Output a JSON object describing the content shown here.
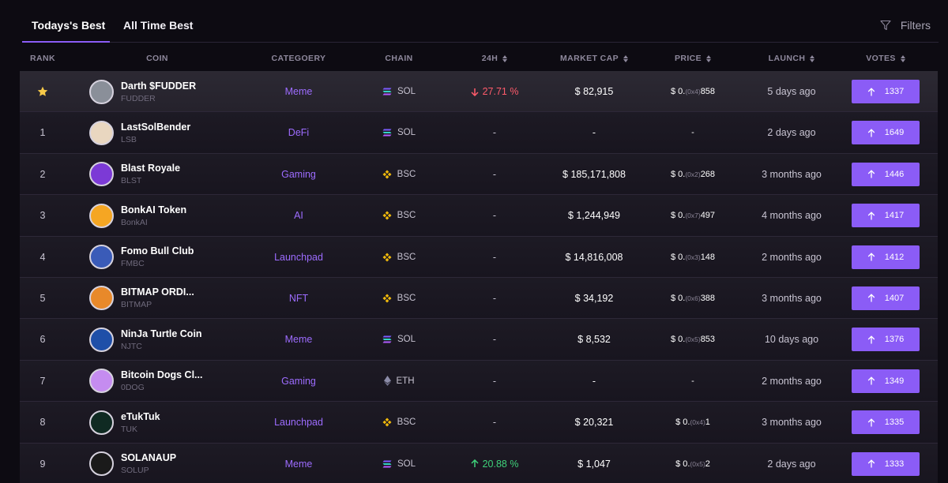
{
  "tabs": [
    {
      "label": "Todays's Best",
      "active": true
    },
    {
      "label": "All Time Best",
      "active": false
    }
  ],
  "filters_label": "Filters",
  "columns": {
    "rank": "RANK",
    "coin": "COIN",
    "category": "CATEGOERY",
    "chain": "CHAIN",
    "change": "24H",
    "mcap": "MARKET CAP",
    "price": "PRICE",
    "launch": "LAUNCH",
    "votes": "VOTES"
  },
  "colors": {
    "accent": "#8b5cf6",
    "category": "#9d6cff",
    "negative": "#ff5b6b",
    "positive": "#3ed27a"
  },
  "rows": [
    {
      "rank": "",
      "featured": true,
      "name": "Darth $FUDDER",
      "symbol": "FUDDER",
      "category": "Meme",
      "chain": "SOL",
      "change": "27.71 %",
      "dir": "down",
      "mcap": "$ 82,915",
      "price_prefix": "$ 0.",
      "price_zeros": "(0x4)",
      "price_digits": "858",
      "launch": "5 days ago",
      "votes": "1337",
      "avatar": "#8a8f99"
    },
    {
      "rank": "1",
      "name": "LastSolBender",
      "symbol": "LSB",
      "category": "DeFi",
      "chain": "SOL",
      "change": "-",
      "dir": "",
      "mcap": "-",
      "price_prefix": "-",
      "price_zeros": "",
      "price_digits": "",
      "launch": "2 days ago",
      "votes": "1649",
      "avatar": "#e9d7c0"
    },
    {
      "rank": "2",
      "name": "Blast Royale",
      "symbol": "BLST",
      "category": "Gaming",
      "chain": "BSC",
      "change": "-",
      "dir": "",
      "mcap": "$ 185,171,808",
      "price_prefix": "$ 0.",
      "price_zeros": "(0x2)",
      "price_digits": "268",
      "launch": "3 months ago",
      "votes": "1446",
      "avatar": "#7c3ad6"
    },
    {
      "rank": "3",
      "name": "BonkAI Token",
      "symbol": "BonkAI",
      "category": "AI",
      "chain": "BSC",
      "change": "-",
      "dir": "",
      "mcap": "$ 1,244,949",
      "price_prefix": "$ 0.",
      "price_zeros": "(0x7)",
      "price_digits": "497",
      "launch": "4 months ago",
      "votes": "1417",
      "avatar": "#f5a623"
    },
    {
      "rank": "4",
      "name": "Fomo Bull Club",
      "symbol": "FMBC",
      "category": "Launchpad",
      "chain": "BSC",
      "change": "-",
      "dir": "",
      "mcap": "$ 14,816,008",
      "price_prefix": "$ 0.",
      "price_zeros": "(0x3)",
      "price_digits": "148",
      "launch": "2 months ago",
      "votes": "1412",
      "avatar": "#3a5bb8"
    },
    {
      "rank": "5",
      "name": "BITMAP ORDI...",
      "symbol": "BITMAP",
      "category": "NFT",
      "chain": "BSC",
      "change": "-",
      "dir": "",
      "mcap": "$ 34,192",
      "price_prefix": "$ 0.",
      "price_zeros": "(0x6)",
      "price_digits": "388",
      "launch": "3 months ago",
      "votes": "1407",
      "avatar": "#e8892a"
    },
    {
      "rank": "6",
      "name": "NinJa Turtle Coin",
      "symbol": "NJTC",
      "category": "Meme",
      "chain": "SOL",
      "change": "-",
      "dir": "",
      "mcap": "$ 8,532",
      "price_prefix": "$ 0.",
      "price_zeros": "(0x5)",
      "price_digits": "853",
      "launch": "10 days ago",
      "votes": "1376",
      "avatar": "#1f4fa8"
    },
    {
      "rank": "7",
      "name": "Bitcoin Dogs Cl...",
      "symbol": "0DOG",
      "category": "Gaming",
      "chain": "ETH",
      "change": "-",
      "dir": "",
      "mcap": "-",
      "price_prefix": "-",
      "price_zeros": "",
      "price_digits": "",
      "launch": "2 months ago",
      "votes": "1349",
      "avatar": "#c58cf0"
    },
    {
      "rank": "8",
      "name": "eTukTuk",
      "symbol": "TUK",
      "category": "Launchpad",
      "chain": "BSC",
      "change": "-",
      "dir": "",
      "mcap": "$ 20,321",
      "price_prefix": "$ 0.",
      "price_zeros": "(0x4)",
      "price_digits": "1",
      "launch": "3 months ago",
      "votes": "1335",
      "avatar": "#0f2a22"
    },
    {
      "rank": "9",
      "name": "SOLANAUP",
      "symbol": "SOLUP",
      "category": "Meme",
      "chain": "SOL",
      "change": "20.88 %",
      "dir": "up",
      "mcap": "$ 1,047",
      "price_prefix": "$ 0.",
      "price_zeros": "(0x5)",
      "price_digits": "2",
      "launch": "2 days ago",
      "votes": "1333",
      "avatar": "#1a1a1a"
    }
  ]
}
